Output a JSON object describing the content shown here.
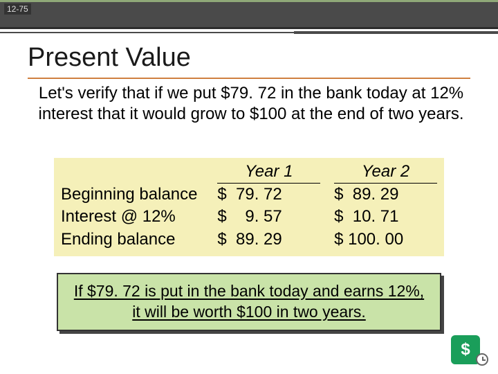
{
  "header": {
    "slide_number": "12-75",
    "topbar_bg": "#4a4a4a",
    "topbar_border_top": "#8fa878",
    "topbar_border_bottom": "#2c2c2c"
  },
  "title": {
    "text": "Present Value",
    "font_size": 38,
    "color": "#1a1a1a",
    "underline_color": "#cf7f3f"
  },
  "body": {
    "text": "Let's verify that if we put $79. 72 in the bank today at 12% interest that it would grow to $100 at the end of two years.",
    "font_size": 24,
    "color": "#000000"
  },
  "table": {
    "type": "table",
    "background_color": "#f5f0b9",
    "header_fontstyle": "italic",
    "header_fontsize": 24,
    "cell_fontsize": 24,
    "columns": [
      "",
      "Year 1",
      "Year 2"
    ],
    "rows": [
      [
        "Beginning balance",
        "$  79. 72",
        "$  89. 29"
      ],
      [
        "Interest @ 12%",
        "$    9. 57",
        "$  10. 71"
      ],
      [
        "Ending balance",
        "$  89. 29",
        "$ 100. 00"
      ]
    ]
  },
  "callout": {
    "text": "If $79. 72 is put in the bank today and earns 12%, it will be worth $100 in two years.",
    "background_color": "#c9e3a8",
    "border_color": "#333333",
    "shadow_color": "#444444",
    "font_size": 23
  },
  "logo": {
    "symbol": "$",
    "badge_color": "#1a9e5a",
    "clock_border": "#666666"
  }
}
